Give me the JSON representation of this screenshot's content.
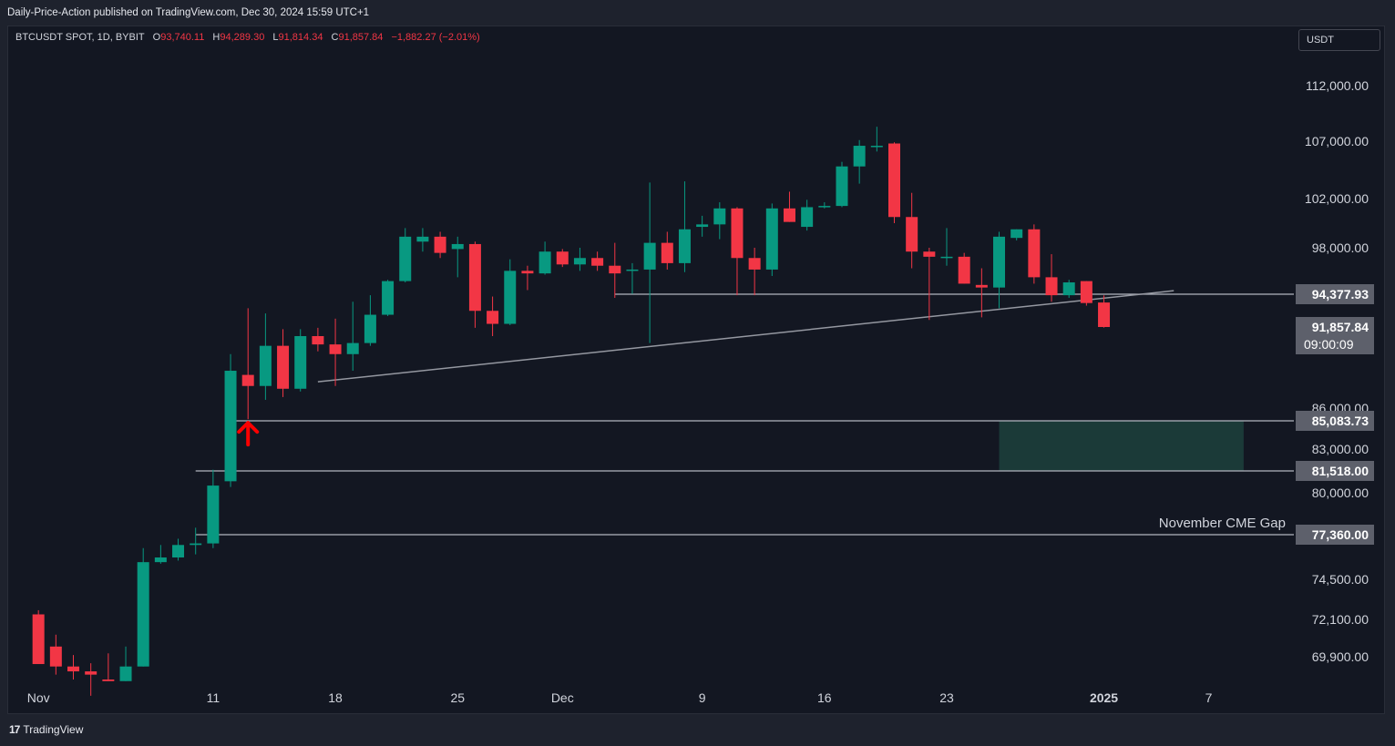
{
  "header": {
    "publisher_line": "Daily-Price-Action published on TradingView.com, Dec 30, 2024 15:59 UTC+1"
  },
  "legend": {
    "symbol": "BTCUSDT SPOT, 1D, BYBIT",
    "o_label": "O",
    "o_value": "93,740.11",
    "h_label": "H",
    "h_value": "94,289.30",
    "l_label": "L",
    "l_value": "91,814.34",
    "c_label": "C",
    "c_value": "91,857.84",
    "change": "−1,882.27 (−2.01%)"
  },
  "currency_button": "USDT",
  "footer": {
    "logo_mark": "17",
    "logo_text": "TradingView"
  },
  "colors": {
    "up": "#089981",
    "down": "#f23645",
    "background": "#131722",
    "level_line": "#b2b5be",
    "gap_zone": "#1b3a38",
    "arrow": "#ff0000"
  },
  "chart_data": {
    "type": "candlestick",
    "symbol": "BTCUSDT SPOT",
    "interval": "1D",
    "exchange": "BYBIT",
    "ylim": [
      68000,
      115000
    ],
    "y_ticks": [
      {
        "value": 112000,
        "label": "112,000.00"
      },
      {
        "value": 107000,
        "label": "107,000.00"
      },
      {
        "value": 102000,
        "label": "102,000.00"
      },
      {
        "value": 98000,
        "label": "98,000.00"
      },
      {
        "value": 86000,
        "label": "86,000.00"
      },
      {
        "value": 83000,
        "label": "83,000.00"
      },
      {
        "value": 80000,
        "label": "80,000.00"
      },
      {
        "value": 74500,
        "label": "74,500.00"
      },
      {
        "value": 72100,
        "label": "72,100.00"
      },
      {
        "value": 69900,
        "label": "69,900.00"
      }
    ],
    "x_ticks": [
      {
        "date": "2024-11-01",
        "label": "Nov",
        "bold": false
      },
      {
        "date": "2024-11-11",
        "label": "11",
        "bold": false
      },
      {
        "date": "2024-11-18",
        "label": "18",
        "bold": false
      },
      {
        "date": "2024-11-25",
        "label": "25",
        "bold": false
      },
      {
        "date": "2024-12-01",
        "label": "Dec",
        "bold": false
      },
      {
        "date": "2024-12-09",
        "label": "9",
        "bold": false
      },
      {
        "date": "2024-12-16",
        "label": "16",
        "bold": false
      },
      {
        "date": "2024-12-23",
        "label": "23",
        "bold": false
      },
      {
        "date": "2025-01-01",
        "label": "2025",
        "bold": true
      },
      {
        "date": "2025-01-07",
        "label": "7",
        "bold": false
      }
    ],
    "x_range": [
      "2024-10-31",
      "2025-01-10"
    ],
    "candles": [
      {
        "date": "2024-11-01",
        "o": 72400,
        "h": 72650,
        "l": 69600,
        "c": 69450
      },
      {
        "date": "2024-11-02",
        "o": 70500,
        "h": 71200,
        "l": 68800,
        "c": 69300
      },
      {
        "date": "2024-11-03",
        "o": 69300,
        "h": 70000,
        "l": 68500,
        "c": 69000
      },
      {
        "date": "2024-11-04",
        "o": 69000,
        "h": 69500,
        "l": 67500,
        "c": 68800
      },
      {
        "date": "2024-11-05",
        "o": 68500,
        "h": 70100,
        "l": 68400,
        "c": 68400
      },
      {
        "date": "2024-11-06",
        "o": 68400,
        "h": 70500,
        "l": 68400,
        "c": 69300
      },
      {
        "date": "2024-11-07",
        "o": 69300,
        "h": 76500,
        "l": 69300,
        "c": 75600
      },
      {
        "date": "2024-11-08",
        "o": 75600,
        "h": 76700,
        "l": 75500,
        "c": 75900
      },
      {
        "date": "2024-11-09",
        "o": 75900,
        "h": 77100,
        "l": 75700,
        "c": 76700
      },
      {
        "date": "2024-11-10",
        "o": 76700,
        "h": 77800,
        "l": 76100,
        "c": 76800
      },
      {
        "date": "2024-11-11",
        "o": 76800,
        "h": 81600,
        "l": 76500,
        "c": 80500
      },
      {
        "date": "2024-11-12",
        "o": 80800,
        "h": 89900,
        "l": 80400,
        "c": 88700
      },
      {
        "date": "2024-11-13",
        "o": 88400,
        "h": 93300,
        "l": 85200,
        "c": 87600
      },
      {
        "date": "2024-11-14",
        "o": 87600,
        "h": 92900,
        "l": 86600,
        "c": 90500
      },
      {
        "date": "2024-11-15",
        "o": 90500,
        "h": 91700,
        "l": 86800,
        "c": 87400
      },
      {
        "date": "2024-11-16",
        "o": 87400,
        "h": 91700,
        "l": 87200,
        "c": 91200
      },
      {
        "date": "2024-11-17",
        "o": 91200,
        "h": 91800,
        "l": 90100,
        "c": 90600
      },
      {
        "date": "2024-11-18",
        "o": 90600,
        "h": 92500,
        "l": 87600,
        "c": 89900
      },
      {
        "date": "2024-11-19",
        "o": 89900,
        "h": 93800,
        "l": 88700,
        "c": 90700
      },
      {
        "date": "2024-11-20",
        "o": 90700,
        "h": 94300,
        "l": 90500,
        "c": 92800
      },
      {
        "date": "2024-11-21",
        "o": 92800,
        "h": 95500,
        "l": 92700,
        "c": 95400
      },
      {
        "date": "2024-11-22",
        "o": 95400,
        "h": 99600,
        "l": 95300,
        "c": 98900
      },
      {
        "date": "2024-11-23",
        "o": 98500,
        "h": 99600,
        "l": 97700,
        "c": 98900
      },
      {
        "date": "2024-11-24",
        "o": 98900,
        "h": 99300,
        "l": 97200,
        "c": 97600
      },
      {
        "date": "2024-11-25",
        "o": 97900,
        "h": 98900,
        "l": 95700,
        "c": 98300
      },
      {
        "date": "2024-11-26",
        "o": 98300,
        "h": 98500,
        "l": 91800,
        "c": 93100
      },
      {
        "date": "2024-11-27",
        "o": 93100,
        "h": 94200,
        "l": 91200,
        "c": 92100
      },
      {
        "date": "2024-11-28",
        "o": 92100,
        "h": 97100,
        "l": 92000,
        "c": 96200
      },
      {
        "date": "2024-11-29",
        "o": 96200,
        "h": 96600,
        "l": 94700,
        "c": 96000
      },
      {
        "date": "2024-11-30",
        "o": 96000,
        "h": 98500,
        "l": 95900,
        "c": 97700
      },
      {
        "date": "2024-12-01",
        "o": 97700,
        "h": 97900,
        "l": 96500,
        "c": 96700
      },
      {
        "date": "2024-12-02",
        "o": 96700,
        "h": 98000,
        "l": 96200,
        "c": 97200
      },
      {
        "date": "2024-12-03",
        "o": 97200,
        "h": 97700,
        "l": 96200,
        "c": 96600
      },
      {
        "date": "2024-12-04",
        "o": 96600,
        "h": 98400,
        "l": 94100,
        "c": 96000
      },
      {
        "date": "2024-12-05",
        "o": 96300,
        "h": 96800,
        "l": 94400,
        "c": 96300
      },
      {
        "date": "2024-12-06",
        "o": 96300,
        "h": 103400,
        "l": 90700,
        "c": 98400
      },
      {
        "date": "2024-12-07",
        "o": 98400,
        "h": 99300,
        "l": 96300,
        "c": 96800
      },
      {
        "date": "2024-12-08",
        "o": 96800,
        "h": 103500,
        "l": 96100,
        "c": 99500
      },
      {
        "date": "2024-12-09",
        "o": 99700,
        "h": 100600,
        "l": 98900,
        "c": 99900
      },
      {
        "date": "2024-12-10",
        "o": 99900,
        "h": 101700,
        "l": 98700,
        "c": 101200
      },
      {
        "date": "2024-12-11",
        "o": 101200,
        "h": 101300,
        "l": 94300,
        "c": 97200
      },
      {
        "date": "2024-12-12",
        "o": 97200,
        "h": 98000,
        "l": 94300,
        "c": 96300
      },
      {
        "date": "2024-12-13",
        "o": 96300,
        "h": 101600,
        "l": 95800,
        "c": 101200
      },
      {
        "date": "2024-12-14",
        "o": 101200,
        "h": 102600,
        "l": 100100,
        "c": 100100
      },
      {
        "date": "2024-12-15",
        "o": 99700,
        "h": 101900,
        "l": 99400,
        "c": 101300
      },
      {
        "date": "2024-12-16",
        "o": 101300,
        "h": 101700,
        "l": 101200,
        "c": 101400
      },
      {
        "date": "2024-12-17",
        "o": 101400,
        "h": 105200,
        "l": 101300,
        "c": 104800
      },
      {
        "date": "2024-12-18",
        "o": 104800,
        "h": 107100,
        "l": 103300,
        "c": 106600
      },
      {
        "date": "2024-12-19",
        "o": 106600,
        "h": 108300,
        "l": 106100,
        "c": 106600
      },
      {
        "date": "2024-12-20",
        "o": 106800,
        "h": 106900,
        "l": 100000,
        "c": 100500
      },
      {
        "date": "2024-12-21",
        "o": 100500,
        "h": 102500,
        "l": 96400,
        "c": 97700
      },
      {
        "date": "2024-12-22",
        "o": 97700,
        "h": 98000,
        "l": 92400,
        "c": 97300
      },
      {
        "date": "2024-12-23",
        "o": 97300,
        "h": 99600,
        "l": 96600,
        "c": 97300
      },
      {
        "date": "2024-12-24",
        "o": 97300,
        "h": 97600,
        "l": 95200,
        "c": 95200
      },
      {
        "date": "2024-12-25",
        "o": 95100,
        "h": 96400,
        "l": 92600,
        "c": 94900
      },
      {
        "date": "2024-12-26",
        "o": 94900,
        "h": 99300,
        "l": 93300,
        "c": 98900
      },
      {
        "date": "2024-12-27",
        "o": 98800,
        "h": 99500,
        "l": 98600,
        "c": 99500
      },
      {
        "date": "2024-12-28",
        "o": 99500,
        "h": 99900,
        "l": 95200,
        "c": 95700
      },
      {
        "date": "2024-12-29",
        "o": 95700,
        "h": 97500,
        "l": 93800,
        "c": 94300
      },
      {
        "date": "2024-12-30",
        "o": 94300,
        "h": 95500,
        "l": 94100,
        "c": 95300
      },
      {
        "date": "2024-12-31",
        "o": 95400,
        "h": 95400,
        "l": 93500,
        "c": 93700
      },
      {
        "date": "2025-01-01",
        "o": 93740.11,
        "h": 94289.3,
        "l": 91814.34,
        "c": 91857.84
      }
    ],
    "levels": [
      {
        "value": 94377.93,
        "label": "94,377.93",
        "from": "2024-12-04"
      },
      {
        "value": 85083.73,
        "label": "85,083.73",
        "from": "2024-11-12"
      },
      {
        "value": 81518.0,
        "label": "81,518.00",
        "from": "2024-11-10"
      },
      {
        "value": 77360.0,
        "label": "77,360.00",
        "from": "2024-11-10",
        "annotation": "November CME Gap"
      }
    ],
    "trendline": {
      "from": {
        "date": "2024-11-17",
        "value": 87900
      },
      "to": {
        "date": "2025-01-05",
        "value": 94650
      }
    },
    "zone": {
      "from": "2024-12-26",
      "to": "2025-01-09",
      "top": 85083.73,
      "bottom": 81518.0
    },
    "last_price": {
      "value": 91857.84,
      "label": "91,857.84",
      "countdown": "09:00:09"
    },
    "arrow": {
      "date": "2024-11-13",
      "value": 84000,
      "direction": "up"
    }
  }
}
